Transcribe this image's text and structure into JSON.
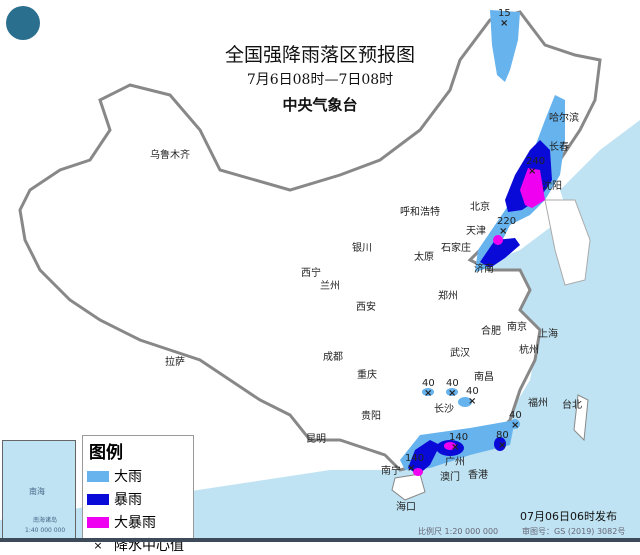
{
  "title": "全国强降雨落区预报图",
  "period": "7月6日08时—7日08时",
  "issuer": "中央气象台",
  "legend": {
    "title": "图例",
    "items": [
      {
        "label": "大雨",
        "color": "#66b3ee"
      },
      {
        "label": "暴雨",
        "color": "#0a0ad8"
      },
      {
        "label": "大暴雨",
        "color": "#f000f0"
      },
      {
        "label": "降水中心值",
        "symbol": "×"
      }
    ]
  },
  "cities": [
    "乌鲁木齐",
    "拉萨",
    "西宁",
    "兰州",
    "银川",
    "呼和浩特",
    "北京",
    "天津",
    "石家庄",
    "太原",
    "济南",
    "郑州",
    "西安",
    "成都",
    "重庆",
    "贵阳",
    "昆明",
    "南宁",
    "海口",
    "广州",
    "澳门",
    "香港",
    "长沙",
    "南昌",
    "武汉",
    "合肥",
    "南京",
    "上海",
    "杭州",
    "福州",
    "台北",
    "哈尔滨",
    "长春",
    "沈阳"
  ],
  "rain_centers": [
    "15",
    "240",
    "220",
    "40",
    "40",
    "40",
    "40",
    "140",
    "80",
    "140"
  ],
  "inset": {
    "sea": "南海",
    "islands": "南海诸岛",
    "scale": "1:40 000 000"
  },
  "footer": {
    "scale": "比例尺 1:20 000 000",
    "map_no": "审图号：GS (2019) 3082号",
    "published": "07月06日06时发布"
  },
  "colors": {
    "sea": "#bfe3f2",
    "land": "#ffffff",
    "border": "#888888"
  }
}
